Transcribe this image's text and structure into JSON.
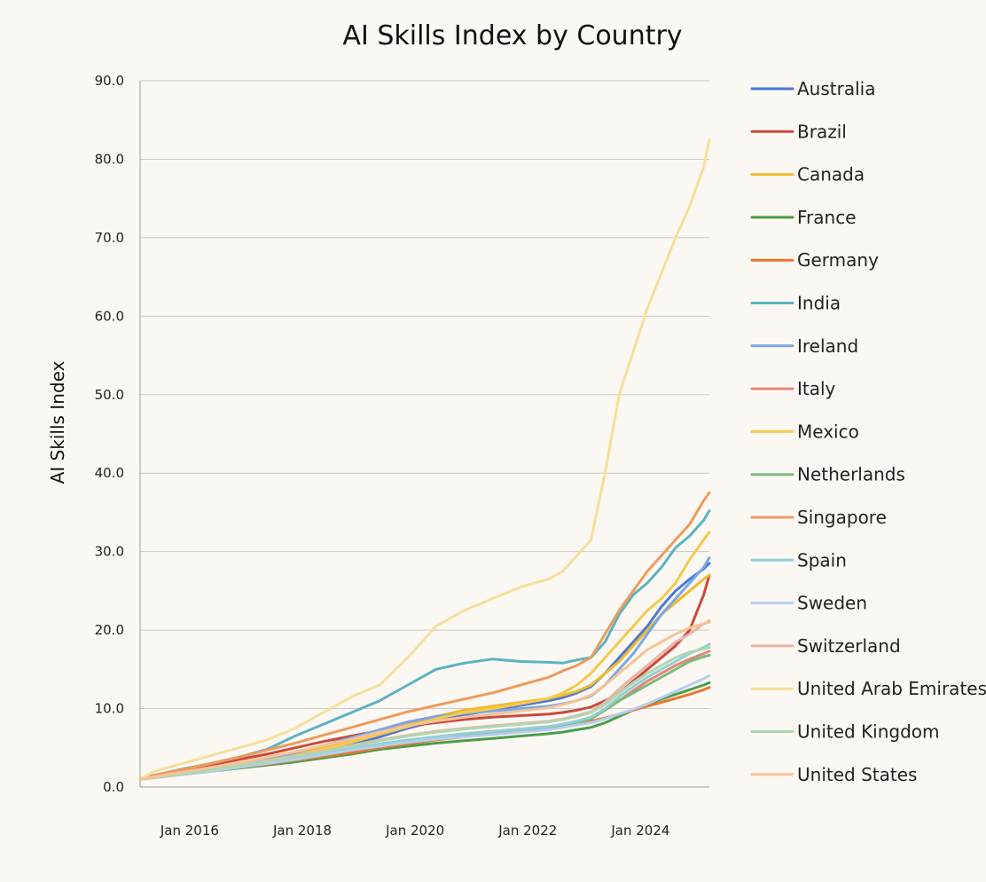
{
  "chart_data": {
    "type": "line",
    "title": "AI Skills Index by Country",
    "xlabel": "",
    "ylabel": "AI Skills Index",
    "ylim": [
      0,
      90
    ],
    "xlim": [
      2015.75,
      2025.85
    ],
    "y_ticks": [
      "0.0",
      "10.0",
      "20.0",
      "30.0",
      "40.0",
      "50.0",
      "60.0",
      "70.0",
      "80.0",
      "90.0"
    ],
    "x_ticks": [
      {
        "label": "Jan 2016",
        "value": 2016.0
      },
      {
        "label": "Jan 2018",
        "value": 2018.0
      },
      {
        "label": "Jan 2020",
        "value": 2020.0
      },
      {
        "label": "Jan 2022",
        "value": 2022.0
      },
      {
        "label": "Jan 2024",
        "value": 2024.0
      }
    ],
    "grid": true,
    "legend_position": "right",
    "x": [
      2015.75,
      2016.0,
      2016.5,
      2017.0,
      2017.5,
      2018.0,
      2018.5,
      2019.0,
      2019.5,
      2020.0,
      2020.5,
      2021.0,
      2021.5,
      2022.0,
      2022.5,
      2023.0,
      2023.25,
      2023.5,
      2023.75,
      2024.0,
      2024.25,
      2024.5,
      2024.75,
      2025.0,
      2025.25,
      2025.5,
      2025.75,
      2025.85
    ],
    "series": [
      {
        "name": "Australia",
        "color": "#4a78d8",
        "values": [
          1.0,
          1.3,
          1.8,
          2.2,
          2.7,
          3.2,
          3.8,
          4.5,
          5.4,
          6.4,
          7.5,
          8.4,
          9.2,
          9.8,
          10.4,
          11.0,
          11.4,
          12.0,
          12.8,
          14.5,
          16.5,
          18.5,
          20.5,
          23.0,
          25.0,
          26.5,
          27.8,
          28.5
        ]
      },
      {
        "name": "Brazil",
        "color": "#c94a3a",
        "values": [
          1.0,
          1.3,
          2.0,
          2.8,
          3.5,
          4.2,
          5.0,
          5.8,
          6.5,
          7.2,
          7.8,
          8.2,
          8.6,
          8.9,
          9.1,
          9.3,
          9.5,
          9.8,
          10.2,
          11.0,
          12.0,
          13.5,
          15.0,
          16.5,
          18.0,
          20.0,
          24.5,
          27.0
        ]
      },
      {
        "name": "Canada",
        "color": "#f0bb2e",
        "values": [
          1.0,
          1.3,
          1.8,
          2.3,
          2.9,
          3.5,
          4.2,
          5.0,
          6.0,
          7.0,
          8.0,
          9.0,
          9.8,
          10.3,
          10.8,
          11.3,
          11.7,
          12.2,
          13.0,
          14.5,
          16.0,
          18.0,
          20.0,
          22.0,
          23.5,
          25.0,
          26.5,
          27.0
        ]
      },
      {
        "name": "France",
        "color": "#4a9e4a",
        "values": [
          1.0,
          1.2,
          1.6,
          2.0,
          2.4,
          2.8,
          3.2,
          3.7,
          4.2,
          4.8,
          5.2,
          5.6,
          5.9,
          6.2,
          6.5,
          6.8,
          7.0,
          7.3,
          7.6,
          8.2,
          9.0,
          9.8,
          10.5,
          11.2,
          11.8,
          12.4,
          13.0,
          13.3
        ]
      },
      {
        "name": "Germany",
        "color": "#e87830",
        "values": [
          1.0,
          1.2,
          1.6,
          2.0,
          2.5,
          2.9,
          3.4,
          3.9,
          4.4,
          5.0,
          5.5,
          6.0,
          6.4,
          6.8,
          7.1,
          7.5,
          7.8,
          8.1,
          8.4,
          8.8,
          9.3,
          9.8,
          10.3,
          10.8,
          11.3,
          11.8,
          12.4,
          12.7
        ]
      },
      {
        "name": "India",
        "color": "#5ab4c0",
        "values": [
          1.0,
          1.5,
          2.3,
          3.0,
          3.8,
          4.8,
          6.5,
          8.0,
          9.5,
          11.0,
          13.0,
          15.0,
          15.8,
          16.3,
          16.0,
          15.9,
          15.8,
          16.2,
          16.5,
          18.5,
          22.0,
          24.5,
          26.0,
          28.0,
          30.5,
          32.0,
          34.0,
          35.2
        ]
      },
      {
        "name": "Ireland",
        "color": "#7aa6e6",
        "values": [
          1.0,
          1.3,
          1.8,
          2.3,
          2.9,
          3.6,
          4.4,
          5.3,
          6.3,
          7.3,
          8.3,
          9.0,
          9.4,
          9.7,
          10.0,
          10.3,
          10.6,
          11.0,
          11.6,
          13.0,
          15.0,
          17.0,
          19.5,
          22.0,
          24.0,
          26.0,
          28.0,
          29.2
        ]
      },
      {
        "name": "Italy",
        "color": "#e2877a",
        "values": [
          1.0,
          1.2,
          1.6,
          2.0,
          2.5,
          3.0,
          3.5,
          4.1,
          4.7,
          5.3,
          5.9,
          6.4,
          6.8,
          7.1,
          7.4,
          7.7,
          8.0,
          8.4,
          8.8,
          9.8,
          11.0,
          12.3,
          13.5,
          14.5,
          15.5,
          16.3,
          17.0,
          17.3
        ]
      },
      {
        "name": "Mexico",
        "color": "#f5c94e",
        "values": [
          1.0,
          1.2,
          1.7,
          2.1,
          2.7,
          3.3,
          4.0,
          4.8,
          5.7,
          6.7,
          7.7,
          8.7,
          9.5,
          10.0,
          10.6,
          11.3,
          12.0,
          13.0,
          14.5,
          16.5,
          18.5,
          20.5,
          22.5,
          24.0,
          26.0,
          29.0,
          31.5,
          32.5
        ]
      },
      {
        "name": "Netherlands",
        "color": "#7cba7a",
        "values": [
          1.0,
          1.2,
          1.6,
          2.0,
          2.5,
          3.0,
          3.5,
          4.1,
          4.7,
          5.3,
          5.8,
          6.2,
          6.6,
          6.9,
          7.2,
          7.5,
          7.8,
          8.2,
          8.7,
          9.8,
          11.0,
          12.0,
          13.0,
          14.0,
          15.0,
          16.0,
          16.6,
          16.8
        ]
      },
      {
        "name": "Singapore",
        "color": "#ef9b5c",
        "values": [
          1.0,
          1.5,
          2.2,
          3.0,
          3.8,
          4.7,
          5.6,
          6.6,
          7.6,
          8.6,
          9.6,
          10.4,
          11.2,
          12.0,
          13.0,
          14.0,
          14.8,
          15.5,
          16.5,
          19.5,
          22.5,
          25.0,
          27.5,
          29.5,
          31.5,
          33.5,
          36.5,
          37.5
        ]
      },
      {
        "name": "Spain",
        "color": "#92cfd6",
        "values": [
          1.0,
          1.2,
          1.6,
          2.1,
          2.6,
          3.1,
          3.7,
          4.3,
          4.9,
          5.5,
          6.0,
          6.4,
          6.8,
          7.1,
          7.4,
          7.7,
          8.0,
          8.4,
          8.9,
          10.0,
          11.5,
          12.8,
          14.0,
          15.0,
          16.0,
          17.0,
          17.8,
          18.2
        ]
      },
      {
        "name": "Sweden",
        "color": "#b6cdee",
        "values": [
          1.0,
          1.2,
          1.6,
          2.0,
          2.5,
          3.0,
          3.5,
          4.1,
          4.7,
          5.2,
          5.7,
          6.1,
          6.4,
          6.7,
          7.0,
          7.3,
          7.6,
          7.9,
          8.2,
          8.7,
          9.3,
          9.9,
          10.6,
          11.4,
          12.2,
          13.0,
          13.8,
          14.2
        ]
      },
      {
        "name": "Switzerland",
        "color": "#ebb3ab",
        "values": [
          1.0,
          1.3,
          1.8,
          2.3,
          2.8,
          3.4,
          4.0,
          4.6,
          5.3,
          6.0,
          6.6,
          7.1,
          7.5,
          7.8,
          8.1,
          8.4,
          8.7,
          9.1,
          9.6,
          10.8,
          12.5,
          14.0,
          15.5,
          17.0,
          18.5,
          19.5,
          20.8,
          21.2
        ]
      },
      {
        "name": "United Arab Emirates",
        "color": "#f7df9a",
        "values": [
          1.0,
          2.0,
          3.0,
          4.0,
          5.0,
          6.0,
          7.5,
          9.5,
          11.5,
          13.0,
          16.5,
          20.5,
          22.5,
          24.0,
          25.5,
          26.5,
          27.5,
          29.5,
          31.5,
          40.0,
          50.0,
          55.5,
          61.0,
          65.5,
          70.0,
          74.0,
          79.0,
          82.5
        ]
      },
      {
        "name": "United Kingdom",
        "color": "#aed6b0",
        "values": [
          1.0,
          1.2,
          1.7,
          2.2,
          2.7,
          3.3,
          3.9,
          4.5,
          5.2,
          5.9,
          6.5,
          7.0,
          7.4,
          7.7,
          8.0,
          8.3,
          8.6,
          9.0,
          9.5,
          10.5,
          12.0,
          13.3,
          14.5,
          15.5,
          16.5,
          17.2,
          17.6,
          17.8
        ]
      },
      {
        "name": "United States",
        "color": "#f6c396",
        "values": [
          1.0,
          1.3,
          1.9,
          2.5,
          3.1,
          3.8,
          4.5,
          5.3,
          6.1,
          7.0,
          7.8,
          8.4,
          8.9,
          9.3,
          9.7,
          10.1,
          10.5,
          11.0,
          11.7,
          13.0,
          14.5,
          16.0,
          17.5,
          18.5,
          19.5,
          20.3,
          20.8,
          21.0
        ]
      }
    ]
  }
}
